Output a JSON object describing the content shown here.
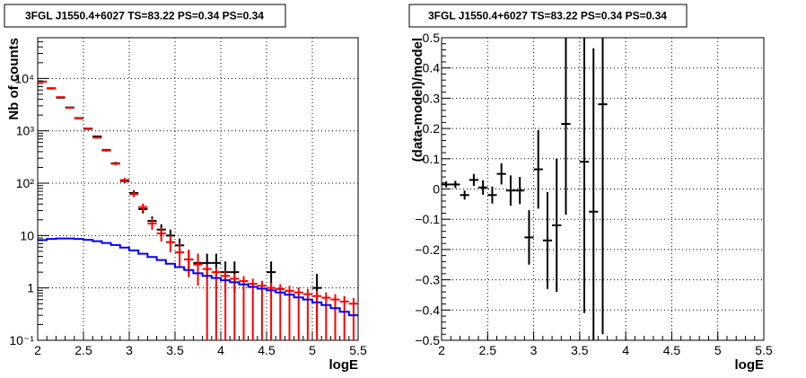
{
  "chart_data": [
    {
      "type": "scatter",
      "title": "3FGL J1550.4+6027 TS=83.22 PS=0.34 PS=0.34",
      "xlabel": "logE",
      "ylabel": "Nb of counts",
      "xlim": [
        2,
        5.5
      ],
      "ylim": [
        0.1,
        60000
      ],
      "yscale": "log",
      "grid": true,
      "x_ticks": [
        "2",
        "2.5",
        "3",
        "3.5",
        "4",
        "4.5",
        "5",
        "5.5"
      ],
      "y_ticks": [
        "10⁻¹",
        "1",
        "10",
        "10²",
        "10³",
        "10⁴"
      ],
      "series": [
        {
          "color": "#000000",
          "style": "points-with-errors",
          "x": [
            2.05,
            2.15,
            2.25,
            2.35,
            2.45,
            2.55,
            2.65,
            2.75,
            2.85,
            2.95,
            3.05,
            3.15,
            3.25,
            3.35,
            3.45,
            3.55,
            3.65,
            3.75,
            3.85,
            3.95,
            4.05,
            4.15,
            4.55,
            5.05
          ],
          "y": [
            8700,
            6500,
            4300,
            2800,
            1750,
            1100,
            780,
            430,
            240,
            110,
            65,
            32,
            19,
            13,
            10,
            6.5,
            3.5,
            3,
            3,
            3,
            2,
            2,
            2,
            1
          ],
          "yerr_low": [
            90,
            80,
            66,
            53,
            42,
            33,
            28,
            21,
            15,
            10,
            8,
            5.5,
            4.2,
            3.4,
            3,
            2.3,
            1.6,
            1.5,
            1.5,
            1.5,
            1.2,
            1.2,
            1.2,
            0.85
          ],
          "yerr_high": [
            90,
            80,
            66,
            53,
            42,
            33,
            28,
            21,
            15,
            10,
            8,
            5.5,
            4.2,
            3.4,
            3,
            2.3,
            1.6,
            1.5,
            1.5,
            1.5,
            1.2,
            1.2,
            1.2,
            0.85
          ]
        },
        {
          "color": "#ff0000",
          "style": "model-with-errors",
          "x": [
            2.05,
            2.15,
            2.25,
            2.35,
            2.45,
            2.55,
            2.65,
            2.75,
            2.85,
            2.95,
            3.05,
            3.15,
            3.25,
            3.35,
            3.45,
            3.55,
            3.65,
            3.75,
            3.85,
            3.95,
            4.05,
            4.15,
            4.25,
            4.35,
            4.45,
            4.55,
            4.65,
            4.75,
            4.85,
            4.95,
            5.05,
            5.15,
            5.25,
            5.35,
            5.45
          ],
          "y": [
            8700,
            6400,
            4400,
            2750,
            1720,
            1080,
            740,
            420,
            235,
            115,
            62,
            35,
            17,
            11,
            7.5,
            4.8,
            3.5,
            2.8,
            2.3,
            2,
            1.7,
            1.5,
            1.35,
            1.2,
            1.1,
            1,
            0.95,
            0.88,
            0.82,
            0.76,
            0.7,
            0.65,
            0.6,
            0.55,
            0.5
          ],
          "yerr_low": [
            90,
            80,
            66,
            53,
            42,
            33,
            28,
            21,
            15,
            10.7,
            7.9,
            6,
            4.1,
            3.3,
            2.7,
            2.2,
            1.9,
            1.7,
            2.2,
            1.9,
            1.6,
            1.4,
            1.25,
            1.1,
            1.02,
            0.92,
            0.87,
            0.8,
            0.75,
            0.7,
            0.64,
            0.6,
            0.55,
            0.5,
            0.46
          ],
          "yerr_high": [
            90,
            80,
            66,
            53,
            42,
            33,
            28,
            21,
            15,
            10.7,
            7.9,
            6,
            4.1,
            3.3,
            2.7,
            2.2,
            1.9,
            1.7,
            0.5,
            0.45,
            0.4,
            0.35,
            0.33,
            0.3,
            0.27,
            0.25,
            0.23,
            0.22,
            0.2,
            0.2,
            0.18,
            0.17,
            0.16,
            0.15,
            0.14
          ]
        },
        {
          "color": "#0000ff",
          "style": "step",
          "x": [
            2.05,
            2.15,
            2.25,
            2.35,
            2.45,
            2.55,
            2.65,
            2.75,
            2.85,
            2.95,
            3.05,
            3.15,
            3.25,
            3.35,
            3.45,
            3.55,
            3.65,
            3.75,
            3.85,
            3.95,
            4.05,
            4.15,
            4.25,
            4.35,
            4.45,
            4.55,
            4.65,
            4.75,
            4.85,
            4.95,
            5.05,
            5.15,
            5.25,
            5.35,
            5.45
          ],
          "y": [
            8.2,
            8.6,
            8.8,
            8.8,
            8.6,
            8.3,
            7.8,
            7.2,
            6.6,
            5.9,
            5.2,
            4.5,
            3.9,
            3.4,
            2.9,
            2.5,
            2.2,
            1.9,
            1.7,
            1.55,
            1.4,
            1.28,
            1.17,
            1.05,
            0.97,
            0.9,
            0.82,
            0.74,
            0.66,
            0.6,
            0.53,
            0.47,
            0.41,
            0.35,
            0.3
          ]
        }
      ]
    },
    {
      "type": "scatter",
      "title": "3FGL J1550.4+6027 TS=83.22 PS=0.34 PS=0.34",
      "xlabel": "logE",
      "ylabel": "(data-model)/model",
      "xlim": [
        2,
        5.5
      ],
      "ylim": [
        -0.5,
        0.5
      ],
      "grid": true,
      "x_ticks": [
        "2",
        "2.5",
        "3",
        "3.5",
        "4",
        "4.5",
        "5",
        "5.5"
      ],
      "y_ticks": [
        "−0.5",
        "−0.4",
        "−0.3",
        "−0.2",
        "−0.1",
        "0",
        "0.1",
        "0.2",
        "0.3",
        "0.4",
        "0.5"
      ],
      "series": [
        {
          "color": "#000000",
          "style": "points-with-errors",
          "x": [
            2.05,
            2.15,
            2.25,
            2.35,
            2.45,
            2.55,
            2.65,
            2.75,
            2.85,
            2.95,
            3.05,
            3.15,
            3.25,
            3.35,
            3.55,
            3.65,
            3.75
          ],
          "y": [
            0.015,
            0.015,
            -0.02,
            0.03,
            0.005,
            -0.02,
            0.05,
            -0.005,
            -0.005,
            -0.16,
            0.065,
            -0.17,
            -0.12,
            0.215,
            0.09,
            -0.075,
            0.28
          ],
          "yerr": [
            0.01,
            0.012,
            0.015,
            0.02,
            0.024,
            0.028,
            0.035,
            0.05,
            0.045,
            0.09,
            0.13,
            0.16,
            0.22,
            0.3,
            0.5,
            0.54,
            0.76
          ]
        }
      ]
    }
  ]
}
